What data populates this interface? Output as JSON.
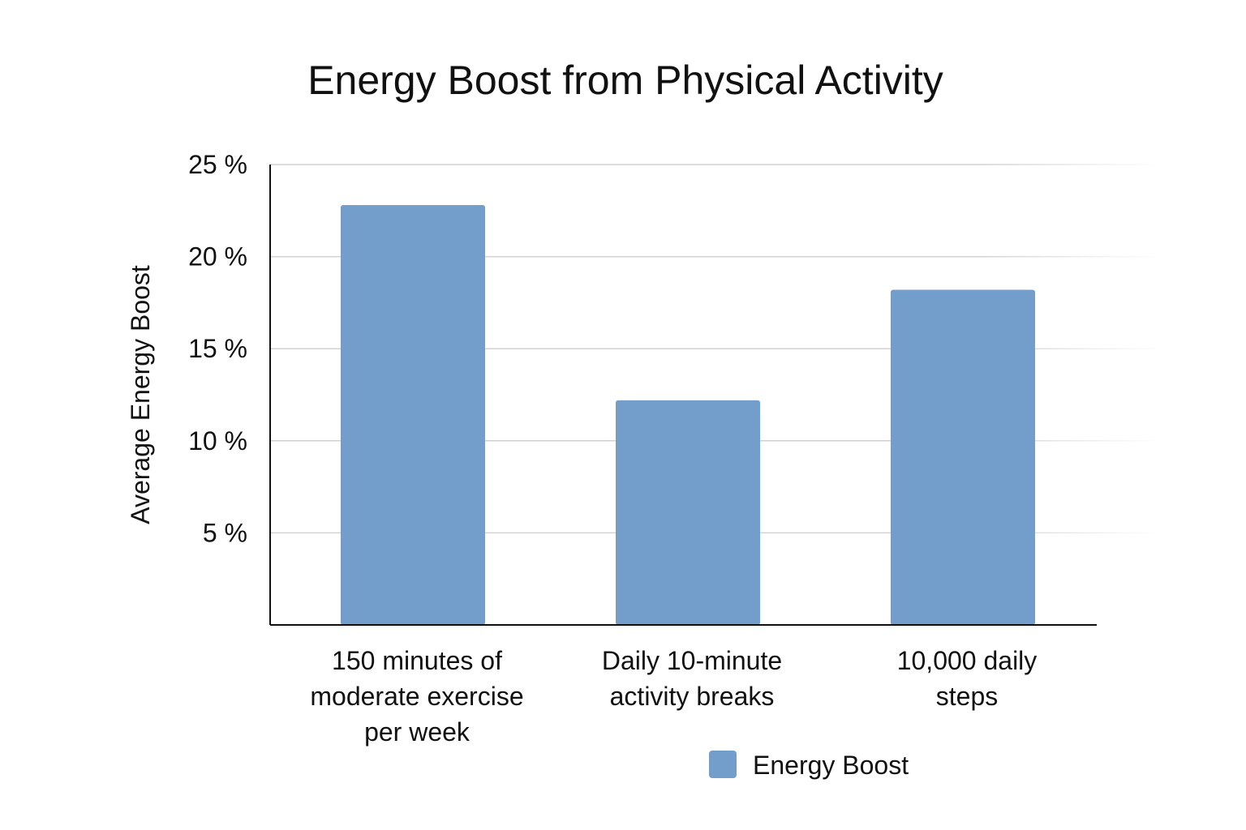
{
  "chart_data": {
    "type": "bar",
    "title": "Energy Boost from Physical Activity",
    "xlabel": "",
    "ylabel": "Average Energy Boost",
    "categories": [
      [
        "150 minutes of",
        "moderate exercise",
        "per week"
      ],
      [
        "Daily 10-minute",
        "activity breaks"
      ],
      [
        "10,000 daily",
        "steps"
      ]
    ],
    "series": [
      {
        "name": "Energy Boost",
        "color": "#739dcb",
        "values": [
          22.8,
          12.2,
          18.2
        ]
      }
    ],
    "ylim": [
      0,
      25
    ],
    "yticks": [
      5,
      10,
      15,
      20,
      25
    ],
    "ytick_labels": [
      "5 %",
      "10 %",
      "15 %",
      "20 %",
      "25 %"
    ],
    "grid": true,
    "legend_position": "bottom-right"
  }
}
